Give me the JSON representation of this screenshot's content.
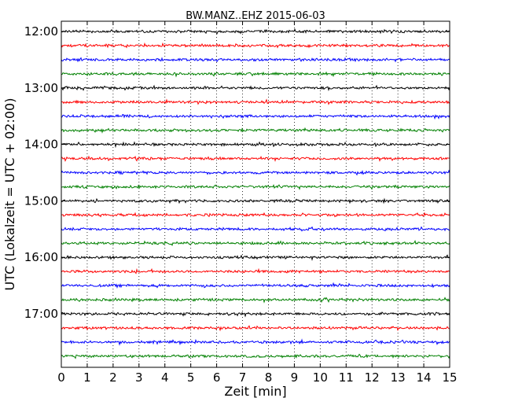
{
  "chart_data": {
    "type": "line",
    "title": "BW.MANZ..EHZ 2015-06-03",
    "xlabel": "Zeit  [min]",
    "ylabel": "UTC (Lokalzeit = UTC + 02:00)",
    "xlim": [
      0,
      15
    ],
    "x_ticks": [
      "0",
      "1",
      "2",
      "3",
      "4",
      "5",
      "6",
      "7",
      "8",
      "9",
      "10",
      "11",
      "12",
      "13",
      "14",
      "15"
    ],
    "y_tick_labels": [
      "12:00",
      "13:00",
      "14:00",
      "15:00",
      "16:00",
      "17:00"
    ],
    "trace_start_times": [
      "12:00",
      "12:15",
      "12:30",
      "12:45",
      "13:00",
      "13:15",
      "13:30",
      "13:45",
      "14:00",
      "14:15",
      "14:30",
      "14:45",
      "15:00",
      "15:15",
      "15:30",
      "15:45",
      "16:00",
      "16:15",
      "16:30",
      "16:45",
      "17:00",
      "17:15",
      "17:30",
      "17:45"
    ],
    "trace_minutes": 15,
    "trace_colors": [
      "#000000",
      "#ff0000",
      "#0000ff",
      "#008000"
    ],
    "grid_x": true,
    "grid_style": "dotted"
  }
}
